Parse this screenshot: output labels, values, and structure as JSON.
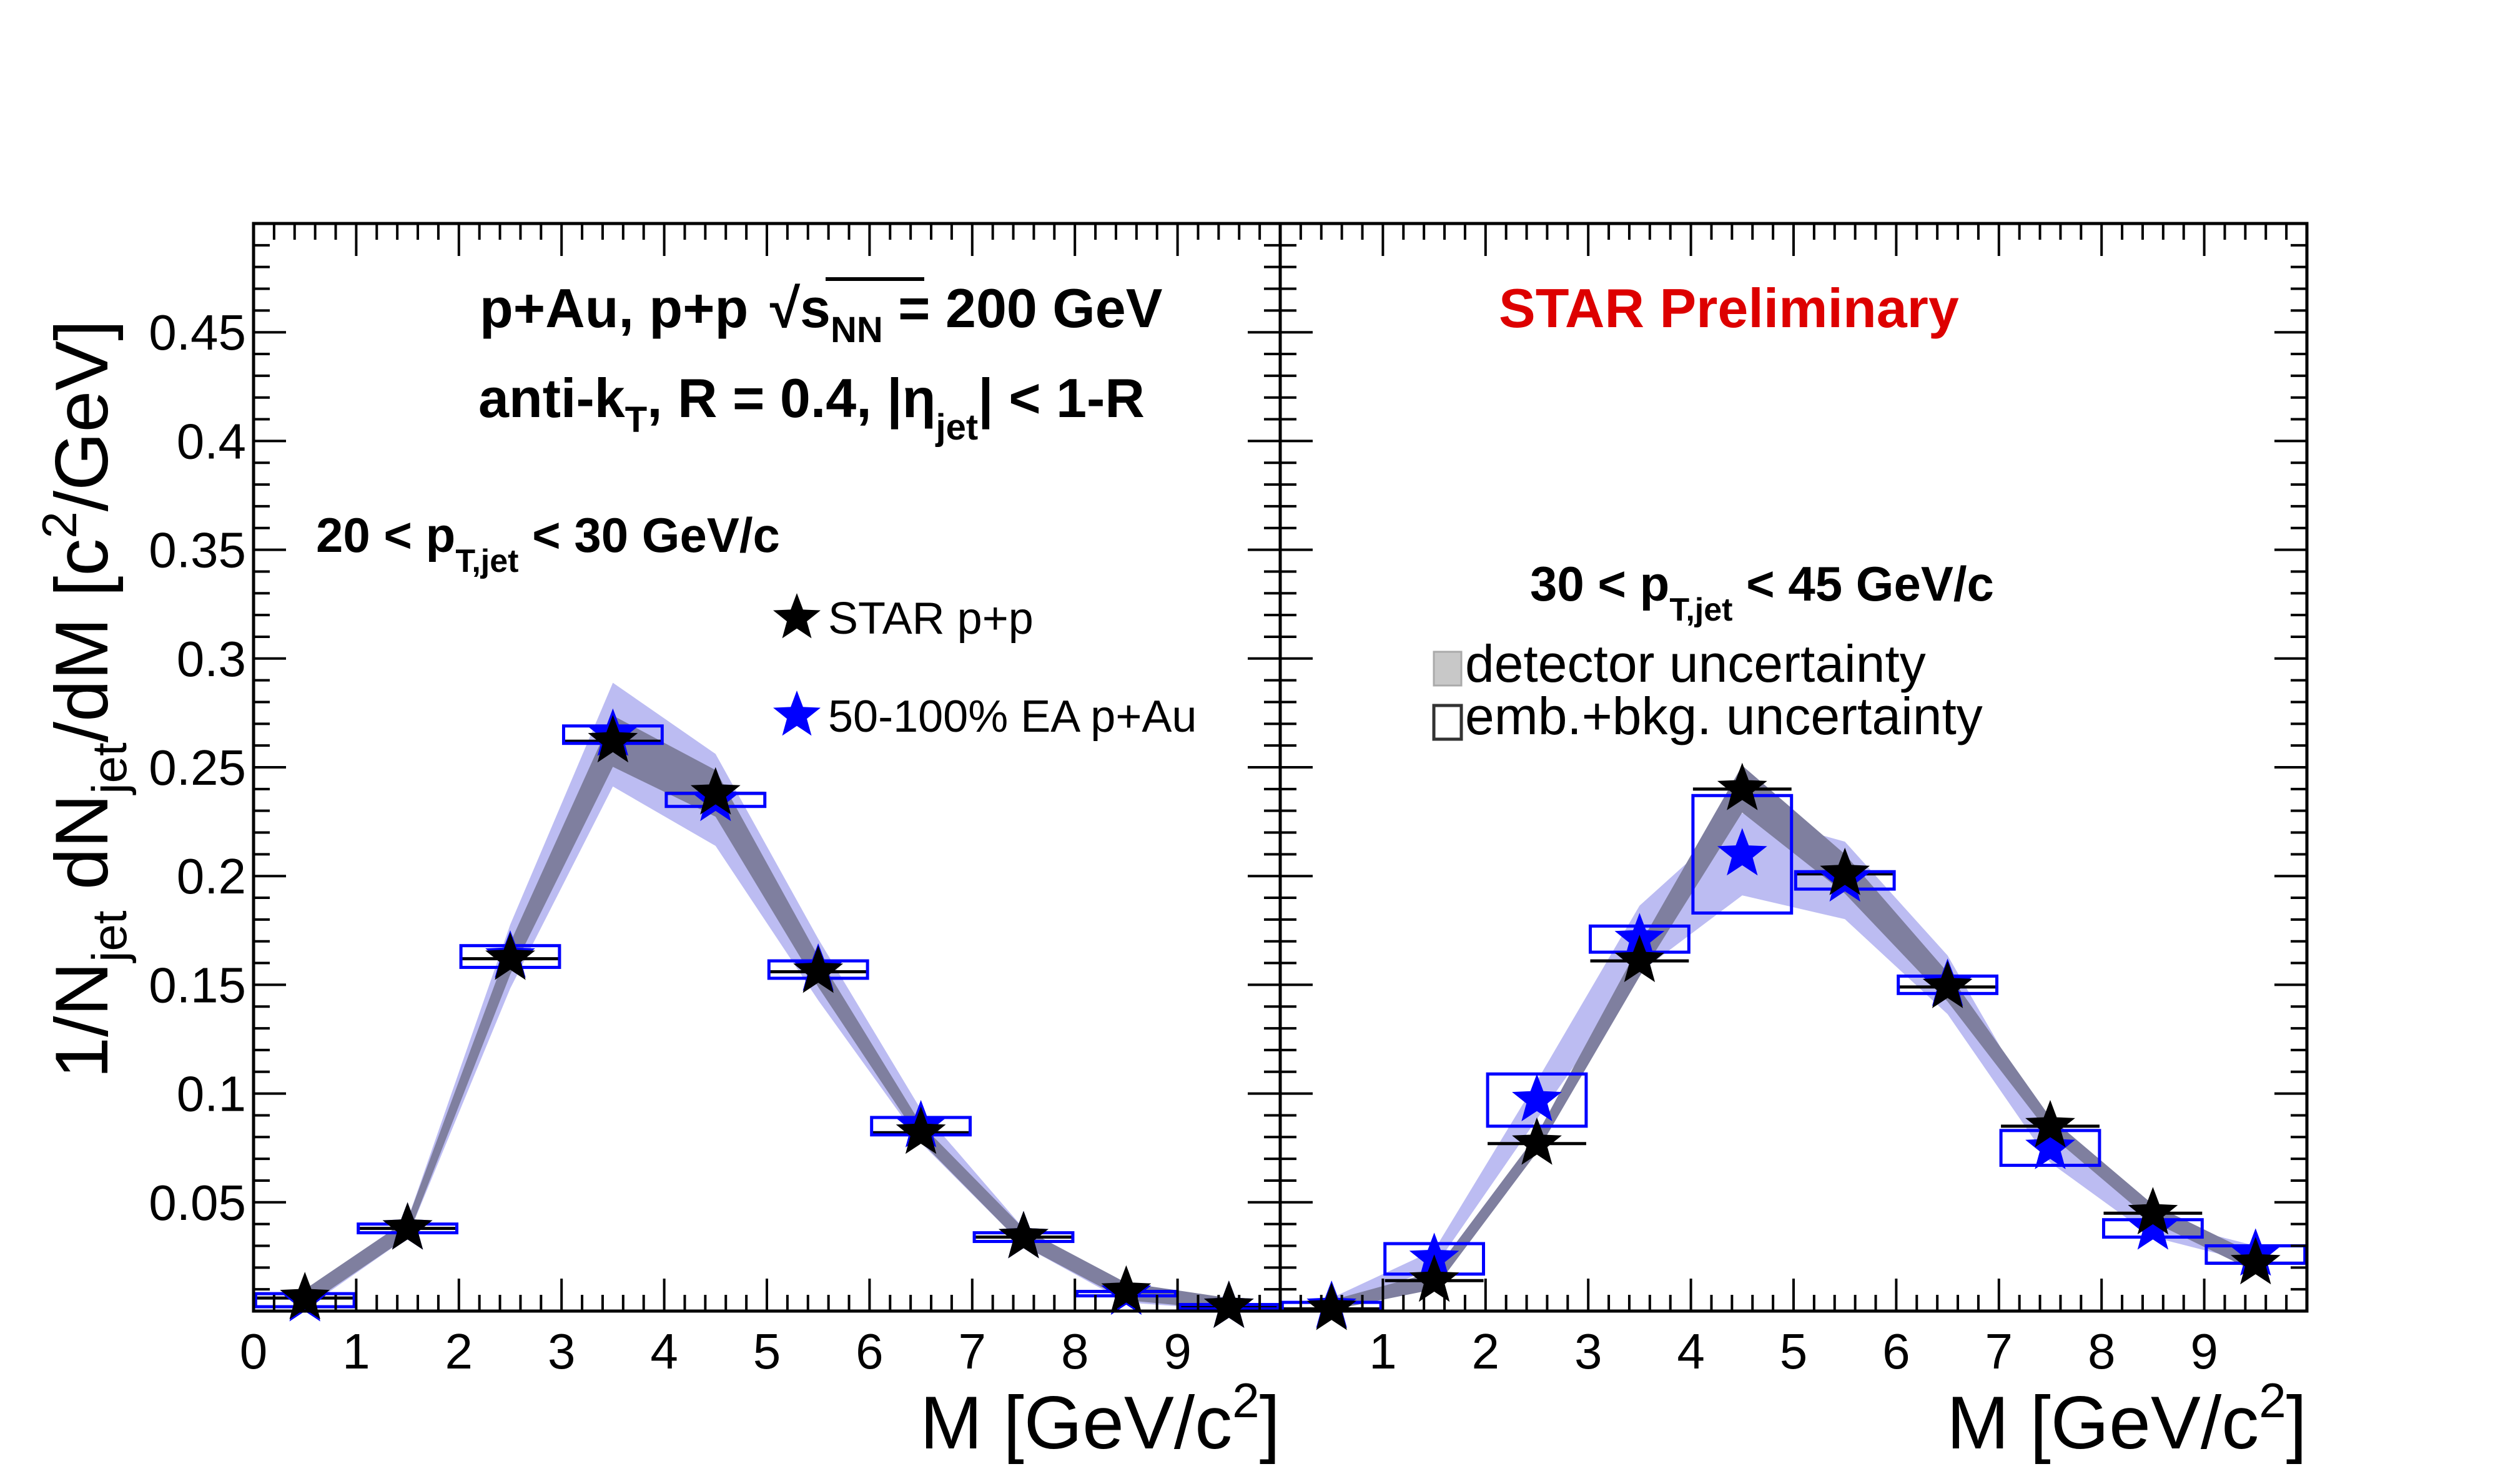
{
  "figure": {
    "y_axis_title": "1/N_jet dN_jet/dM [c^2/GeV]",
    "x_axis_title": "M [GeV/c^2]",
    "header_line1": "p+Au, p+p √s_NN = 200 GeV",
    "header_line2": "anti-k_T, R = 0.4, |η_jet| < 1-R",
    "preliminary": "STAR Preliminary",
    "preliminary_color": "#dd0000",
    "pp_color": "#000000",
    "pau_color": "#0000ff",
    "pp_band_color": "#7f7f9f",
    "pau_band_color": "#bcbcf2"
  },
  "legend": {
    "pp": "STAR p+p",
    "pau": "50-100% EA p+Au",
    "detector": "detector uncertainty",
    "emb": "emb.+bkg. uncertainty"
  },
  "chart_data": [
    {
      "type": "scatter",
      "panel": "left",
      "pt_label": "20 < p_T,jet < 30 GeV/c",
      "xlabel": "M [GeV/c^2]",
      "ylabel": "1/N_jet dN_jet/dM [c^2/GeV]",
      "xlim": [
        0,
        10
      ],
      "ylim": [
        0,
        0.5
      ],
      "x_ticks": [
        "0",
        "1",
        "2",
        "3",
        "4",
        "5",
        "6",
        "7",
        "8",
        "9"
      ],
      "y_ticks": [
        "0.05",
        "0.1",
        "0.15",
        "0.2",
        "0.25",
        "0.3",
        "0.35",
        "0.4",
        "0.45"
      ],
      "x": [
        0.5,
        1.5,
        2.5,
        3.5,
        4.5,
        5.5,
        6.5,
        7.5,
        8.5,
        9.5
      ],
      "series": [
        {
          "name": "STAR p+p",
          "values": [
            0.006,
            0.038,
            0.162,
            0.262,
            0.238,
            0.156,
            0.082,
            0.034,
            0.009,
            0.002
          ]
        },
        {
          "name": "50-100% EA p+Au",
          "values": [
            0.005,
            0.038,
            0.163,
            0.265,
            0.235,
            0.157,
            0.085,
            0.034,
            0.008,
            0.002
          ]
        }
      ],
      "pau_box_half_height": [
        0.003,
        0.002,
        0.005,
        0.004,
        0.003,
        0.004,
        0.004,
        0.002,
        0.001,
        0.001
      ]
    },
    {
      "type": "scatter",
      "panel": "right",
      "pt_label": "30 < p_T,jet < 45 GeV/c",
      "xlabel": "M [GeV/c^2]",
      "xlim": [
        0,
        10
      ],
      "ylim": [
        0,
        0.5
      ],
      "x_ticks": [
        "1",
        "2",
        "3",
        "4",
        "5",
        "6",
        "7",
        "8",
        "9"
      ],
      "x": [
        0.5,
        1.5,
        2.5,
        3.5,
        4.5,
        5.5,
        6.5,
        7.5,
        8.5,
        9.5
      ],
      "series": [
        {
          "name": "STAR p+p",
          "values": [
            0.001,
            0.014,
            0.077,
            0.161,
            0.24,
            0.201,
            0.149,
            0.085,
            0.045,
            0.022
          ]
        },
        {
          "name": "50-100% EA p+Au",
          "values": [
            0.002,
            0.024,
            0.097,
            0.171,
            0.21,
            0.198,
            0.15,
            0.075,
            0.038,
            0.026
          ]
        }
      ],
      "pau_box_half_height": [
        0.002,
        0.007,
        0.012,
        0.006,
        0.027,
        0.004,
        0.004,
        0.008,
        0.004,
        0.004
      ]
    }
  ]
}
